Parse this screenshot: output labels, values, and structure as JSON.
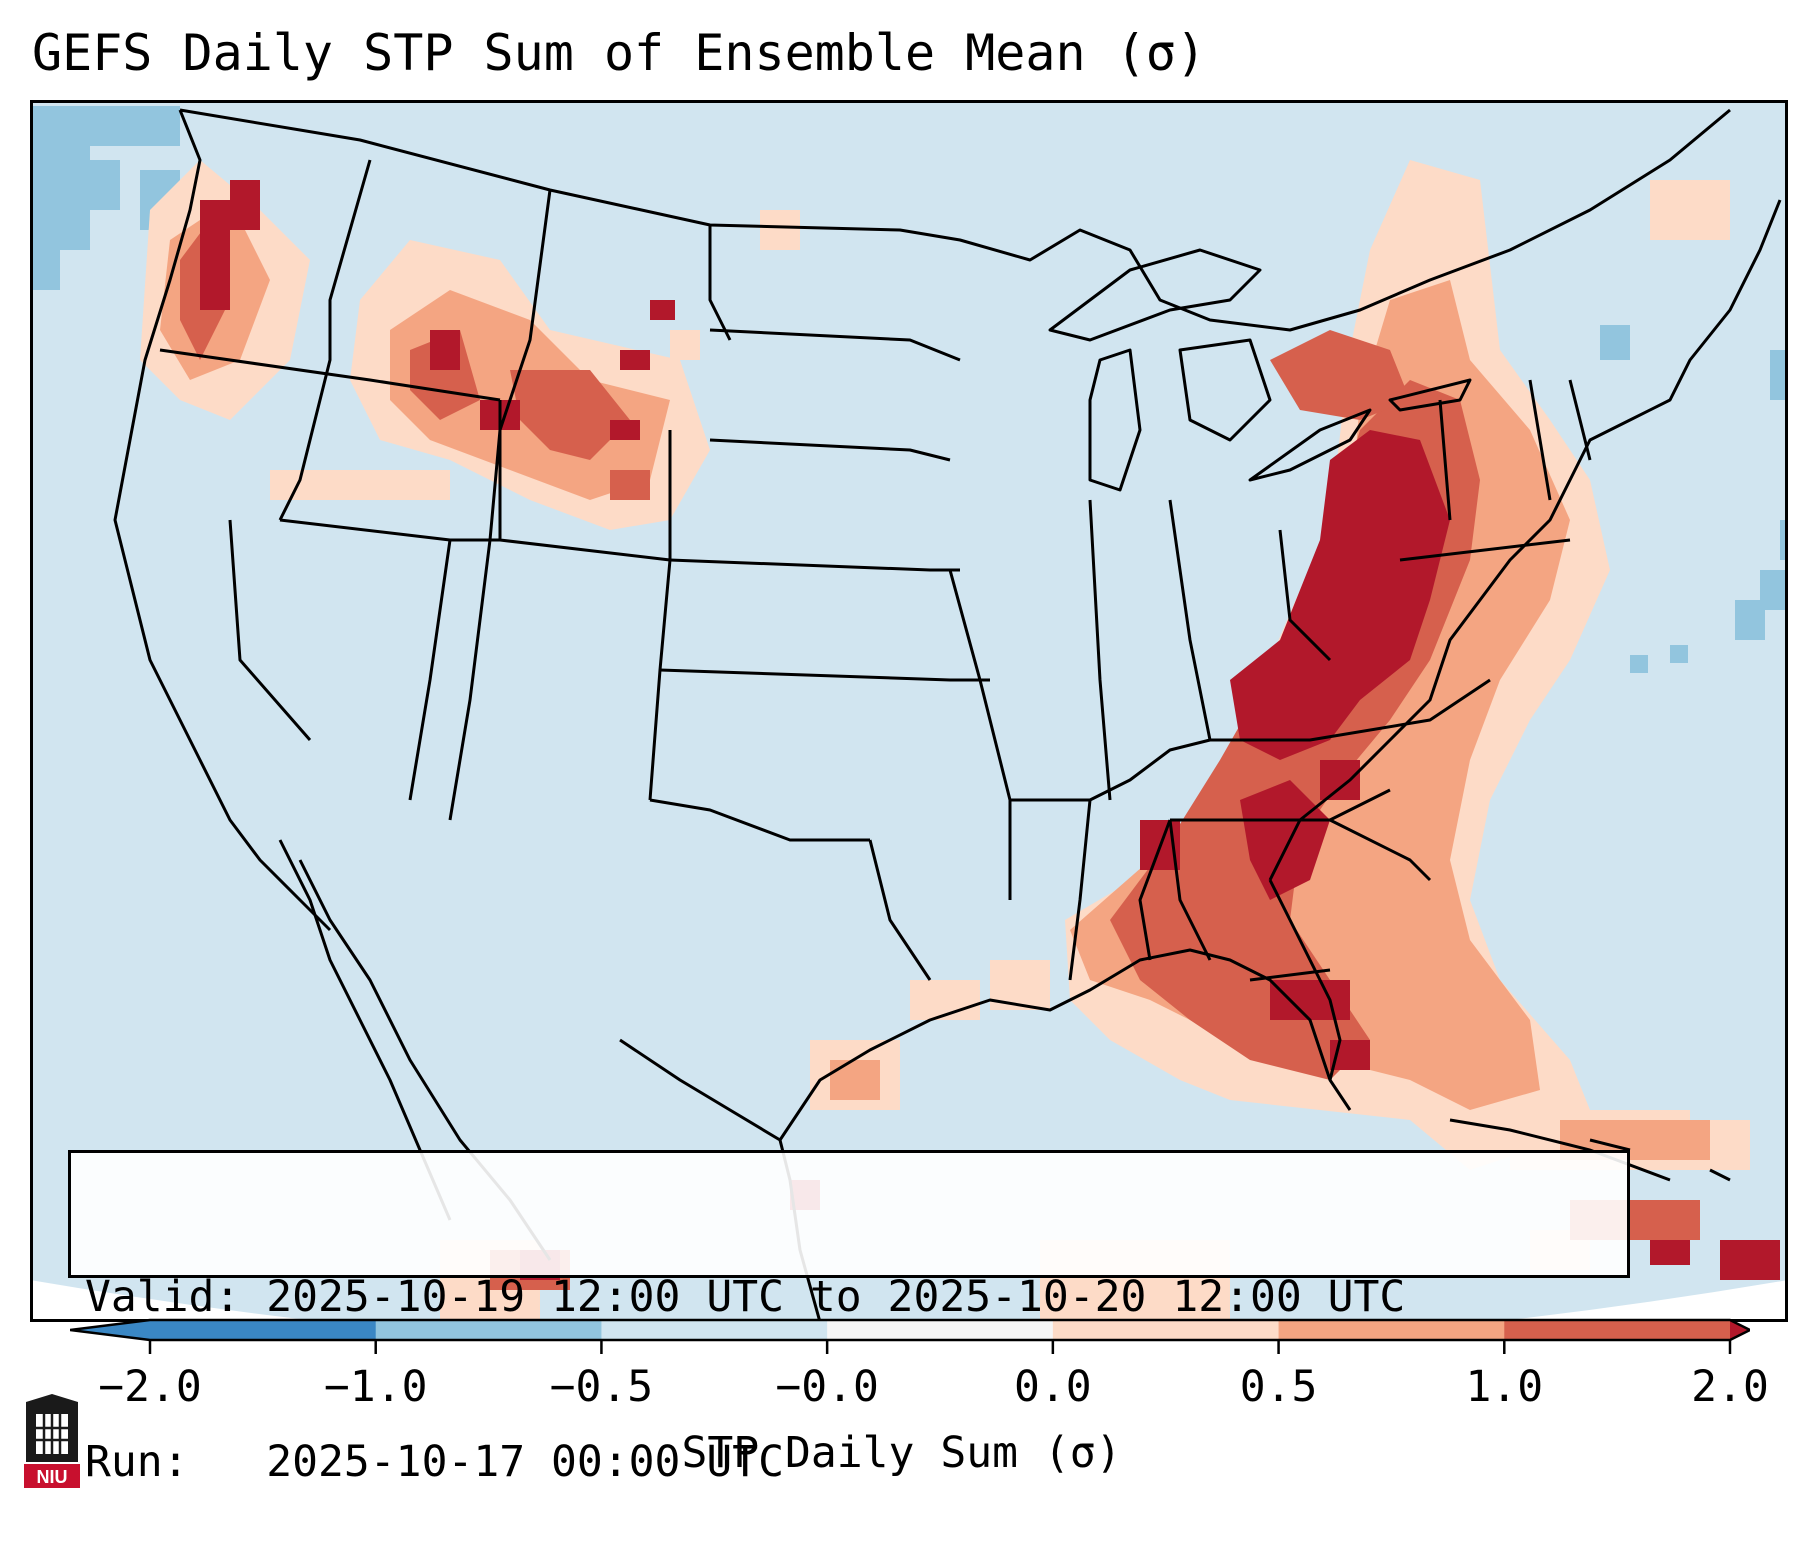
{
  "title": "GEFS Daily STP Sum of Ensemble Mean (σ)",
  "info": {
    "valid_label": "Valid:",
    "valid_value": "2025-10-19 12:00 UTC to 2025-10-20 12:00 UTC",
    "run_label": "Run:",
    "run_value": "2025-10-17 00:00 UTC"
  },
  "colorbar": {
    "label": "STP Daily Sum (σ)",
    "ticks": [
      "−2.0",
      "−1.0",
      "−0.5",
      "−0.0",
      "0.0",
      "0.5",
      "1.0",
      "2.0"
    ],
    "colors": [
      "#3a87c4",
      "#92c5de",
      "#d1e5f0",
      "#f7f7f7",
      "#fddbc7",
      "#f4a582",
      "#d6604d",
      "#b2182b"
    ]
  },
  "map": {
    "ocean_color": "#d1e5f0",
    "regions": [
      {
        "name": "ohio-valley-max",
        "level": "2.0"
      },
      {
        "name": "southeast-corridor",
        "level": "1.0"
      },
      {
        "name": "pacific-northwest",
        "level": "1.0"
      },
      {
        "name": "northern-rockies",
        "level": "1.0"
      },
      {
        "name": "caribbean",
        "level": "1.0"
      },
      {
        "name": "northeast-pacific",
        "level": "-1.0"
      }
    ]
  },
  "logo_text": "NIU"
}
